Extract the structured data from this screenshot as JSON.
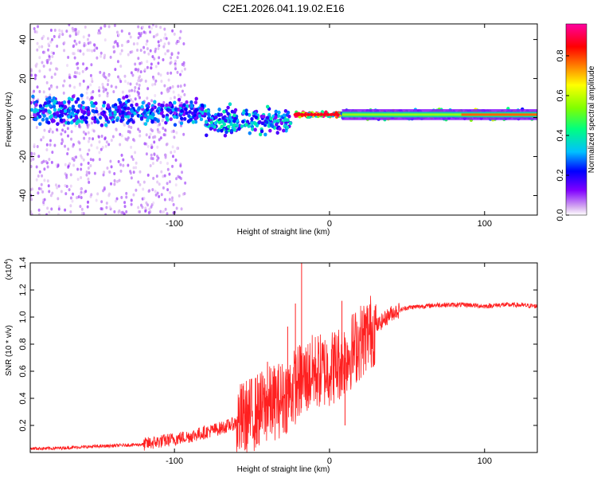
{
  "title": "C2E1.2026.041.19.02.E16",
  "chart_data": [
    {
      "type": "heatmap",
      "title": "C2E1.2026.041.19.02.E16",
      "xlabel": "Height of straight line (km)",
      "ylabel": "Frequency (Hz)",
      "xlim": [
        -193,
        134
      ],
      "ylim": [
        -50,
        48
      ],
      "x_ticks": [
        -100,
        0,
        100
      ],
      "y_ticks": [
        -40,
        -20,
        0,
        20,
        40
      ],
      "x_tick_labels": [
        "-100",
        "0",
        "100"
      ],
      "y_tick_labels": [
        "-40",
        "-20",
        "0",
        "20",
        "40"
      ],
      "colorbar": {
        "label": "Normalized spectral amplitude",
        "range": [
          0,
          0.96
        ],
        "ticks": [
          0.0,
          0.2,
          0.4,
          0.6,
          0.8
        ],
        "tick_labels": [
          "0.0",
          "0.2",
          "0.4",
          "0.6",
          "0.8"
        ],
        "colors": [
          "#ffffff",
          "#d8b0f0",
          "#8000ff",
          "#0000ff",
          "#00c0ff",
          "#00ff80",
          "#80ff00",
          "#ffff00",
          "#ff8000",
          "#ff0000",
          "#ff00a0"
        ]
      },
      "bands": [
        {
          "x_from": -193,
          "x_to": -130,
          "freq_center": 3,
          "freq_halfwidth": 6,
          "level": 0.3
        },
        {
          "x_from": -130,
          "x_to": -80,
          "freq_center": 3,
          "freq_halfwidth": 5,
          "level": 0.3
        },
        {
          "x_from": -80,
          "x_to": -25,
          "freq_center": -2,
          "freq_halfwidth": 6,
          "level": 0.35
        },
        {
          "x_from": -22,
          "x_to": 8,
          "freq_center": 1.5,
          "freq_halfwidth": 1,
          "level": 0.9
        },
        {
          "x_from": 8,
          "x_to": 134,
          "freq_center": 1.5,
          "freq_halfwidth": 2,
          "level": 0.55
        },
        {
          "x_from": 90,
          "x_to": 134,
          "freq_center": 1.5,
          "freq_halfwidth": 1,
          "level": 0.85
        }
      ]
    },
    {
      "type": "line",
      "xlabel": "Height of straight line (km)",
      "ylabel": "SNR (10 * v/v)",
      "y_multiplier_label": "(x10",
      "y_multiplier_exp": "4",
      "y_multiplier_close": ")",
      "xlim": [
        -193,
        134
      ],
      "ylim": [
        0,
        1.4
      ],
      "x_ticks": [
        -100,
        0,
        100
      ],
      "y_ticks": [
        0.2,
        0.4,
        0.6,
        0.8,
        1.0,
        1.2,
        1.4
      ],
      "x_tick_labels": [
        "-100",
        "0",
        "100"
      ],
      "y_tick_labels": [
        "0.2",
        "0.4",
        "0.6",
        "0.8",
        "1.0",
        "1.2",
        "1.4"
      ],
      "color": "#ff2020",
      "series": [
        {
          "name": "SNR",
          "x": [
            -193,
            -180,
            -160,
            -140,
            -120,
            -110,
            -100,
            -90,
            -80,
            -70,
            -60,
            -50,
            -40,
            -30,
            -25,
            -20,
            -15,
            -10,
            -5,
            0,
            5,
            10,
            15,
            20,
            25,
            30,
            35,
            40,
            50,
            60,
            70,
            80,
            90,
            100,
            110,
            120,
            134
          ],
          "y": [
            0.03,
            0.03,
            0.04,
            0.05,
            0.06,
            0.08,
            0.1,
            0.12,
            0.15,
            0.18,
            0.22,
            0.28,
            0.35,
            0.4,
            0.45,
            0.52,
            0.55,
            0.6,
            0.6,
            0.62,
            0.65,
            0.7,
            0.76,
            0.82,
            0.88,
            0.93,
            0.98,
            1.03,
            1.07,
            1.08,
            1.09,
            1.09,
            1.09,
            1.08,
            1.09,
            1.09,
            1.08
          ]
        }
      ],
      "spikes": [
        {
          "x": -18,
          "y": 1.4
        },
        {
          "x": -22,
          "y": 1.1
        },
        {
          "x": -27,
          "y": 0.93
        },
        {
          "x": -40,
          "y": 0.67
        },
        {
          "x": 8,
          "y": 1.12
        },
        {
          "x": 10,
          "y": 0.2
        },
        {
          "x": 3,
          "y": 0.85
        }
      ]
    }
  ]
}
